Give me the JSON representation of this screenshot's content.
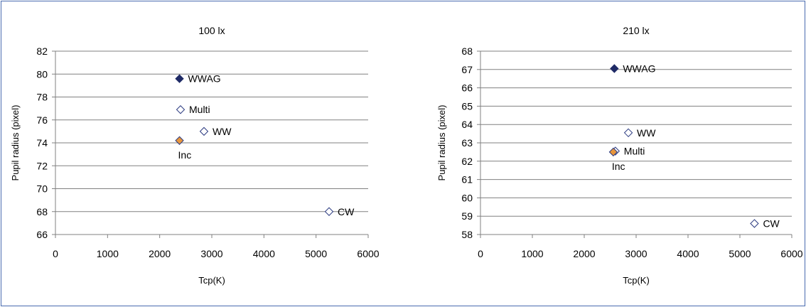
{
  "chart_data": [
    {
      "type": "scatter",
      "title": "100 lx",
      "xlabel": "Tcp(K)",
      "ylabel": "Pupil radius (pixel)",
      "xlim": [
        0,
        6000
      ],
      "ylim": [
        66,
        82
      ],
      "xticks": [
        0,
        1000,
        2000,
        3000,
        4000,
        5000,
        6000
      ],
      "yticks": [
        66,
        68,
        70,
        72,
        74,
        76,
        78,
        80,
        82
      ],
      "grid": "horizontal",
      "points": [
        {
          "label": "WWAG",
          "x": 2380,
          "y": 79.6,
          "marker": "filled-navy",
          "label_pos": "right"
        },
        {
          "label": "Multi",
          "x": 2400,
          "y": 76.9,
          "marker": "open",
          "label_pos": "right"
        },
        {
          "label": "WW",
          "x": 2850,
          "y": 75.0,
          "marker": "open",
          "label_pos": "right"
        },
        {
          "label": "Inc",
          "x": 2380,
          "y": 74.2,
          "marker": "filled-orange",
          "label_pos": "below"
        },
        {
          "label": "CW",
          "x": 5250,
          "y": 68.0,
          "marker": "open",
          "label_pos": "right"
        }
      ]
    },
    {
      "type": "scatter",
      "title": "210 lx",
      "xlabel": "Tcp(K)",
      "ylabel": "Pupil radius (pixel)",
      "xlim": [
        0,
        6000
      ],
      "ylim": [
        58,
        68
      ],
      "xticks": [
        0,
        1000,
        2000,
        3000,
        4000,
        5000,
        6000
      ],
      "yticks": [
        58,
        59,
        60,
        61,
        62,
        63,
        64,
        65,
        66,
        67,
        68
      ],
      "grid": "horizontal",
      "points": [
        {
          "label": "WWAG",
          "x": 2580,
          "y": 67.05,
          "marker": "filled-navy",
          "label_pos": "right"
        },
        {
          "label": "WW",
          "x": 2850,
          "y": 63.55,
          "marker": "open",
          "label_pos": "right"
        },
        {
          "label": "Multi",
          "x": 2600,
          "y": 62.55,
          "marker": "open",
          "label_pos": "right"
        },
        {
          "label": "Inc",
          "x": 2560,
          "y": 62.5,
          "marker": "filled-orange",
          "label_pos": "below"
        },
        {
          "label": "CW",
          "x": 5280,
          "y": 58.6,
          "marker": "open",
          "label_pos": "right"
        }
      ]
    }
  ],
  "colors": {
    "frame_border": "#4a6cb0",
    "axis": "#808080",
    "gridline": "#808080",
    "marker_navy": "#1f2a66",
    "marker_orange": "#e8963c",
    "marker_outline": "#2b3a80"
  }
}
